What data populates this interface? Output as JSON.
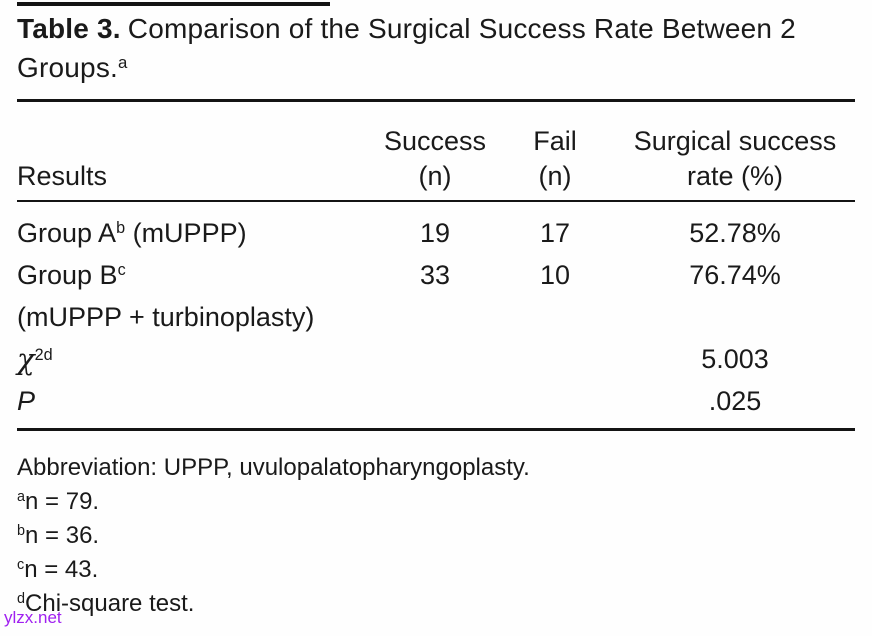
{
  "caption": {
    "label": "Table 3.",
    "line1": "Comparison of the Surgical Success Rate Between 2",
    "line2": "Groups.",
    "line2_sup": "a"
  },
  "table": {
    "header": {
      "results": "Results",
      "success_line1": "Success",
      "success_line2": "(n)",
      "fail_line1": "Fail",
      "fail_line2": "(n)",
      "rate_line1": "Surgical success",
      "rate_line2": "rate (%)"
    },
    "rows": [
      {
        "label_pre": "Group A",
        "label_sup": "b",
        "label_post": " (mUPPP)",
        "success": "19",
        "fail": "17",
        "rate": "52.78%"
      },
      {
        "label_pre": "Group B",
        "label_sup": "c",
        "label_post": "",
        "success": "33",
        "fail": "10",
        "rate": "76.74%"
      },
      {
        "label_pre": "(mUPPP + turbinoplasty)",
        "label_sup": "",
        "label_post": "",
        "success": "",
        "fail": "",
        "rate": ""
      },
      {
        "label_pre": "χ",
        "label_sup": "2d",
        "label_post": "",
        "success": "",
        "fail": "",
        "rate": "5.003"
      },
      {
        "label_pre": "P",
        "label_sup": "",
        "label_post": "",
        "success": "",
        "fail": "",
        "rate": ".025"
      }
    ]
  },
  "footnotes": [
    {
      "sup": "",
      "text": "Abbreviation: UPPP, uvulopalatopharyngoplasty."
    },
    {
      "sup": "a",
      "text": "n = 79."
    },
    {
      "sup": "b",
      "text": "n = 36."
    },
    {
      "sup": "c",
      "text": "n = 43."
    },
    {
      "sup": "d",
      "text": "Chi-square test."
    }
  ],
  "watermark": {
    "text": "ylzx.net",
    "color": "#a020f0"
  }
}
